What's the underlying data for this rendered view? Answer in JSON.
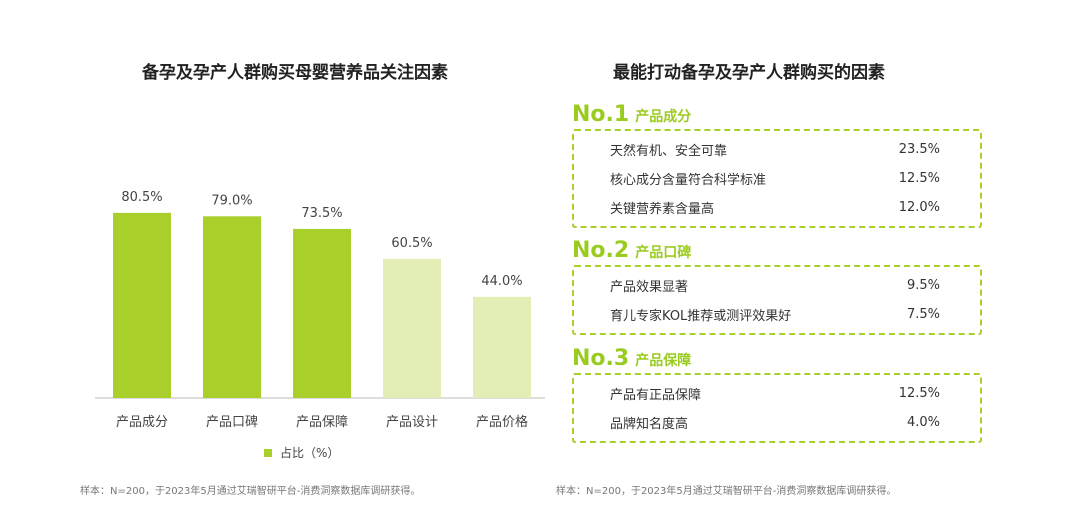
{
  "left": {
    "title": "备孕及孕产人群购买母婴营养品关注因素",
    "legend": "占比（%）",
    "note": "样本：N=200，于2023年5月通过艾瑞智研平台-消费洞察数据库调研获得。"
  },
  "right": {
    "title": "最能打动备孕及孕产人群购买的因素",
    "note": "样本：N=200，于2023年5月通过艾瑞智研平台-消费洞察数据库调研获得。",
    "groups": [
      {
        "no": "No.1",
        "name": "产品成分",
        "items": [
          {
            "label": "天然有机、安全可靠",
            "value": "23.5%"
          },
          {
            "label": "核心成分含量符合科学标准",
            "value": "12.5%"
          },
          {
            "label": "关键营养素含量高",
            "value": "12.0%"
          }
        ]
      },
      {
        "no": "No.2",
        "name": "产品口碑",
        "items": [
          {
            "label": "产品效果显著",
            "value": "9.5%"
          },
          {
            "label": "育儿专家KOL推荐或测评效果好",
            "value": "7.5%"
          }
        ]
      },
      {
        "no": "No.3",
        "name": "产品保障",
        "items": [
          {
            "label": "产品有正品保障",
            "value": "12.5%"
          },
          {
            "label": "品牌知名度高",
            "value": "4.0%"
          }
        ]
      }
    ]
  },
  "chart_data": {
    "type": "bar",
    "title": "备孕及孕产人群购买母婴营养品关注因素",
    "categories": [
      "产品成分",
      "产品口碑",
      "产品保障",
      "产品设计",
      "产品价格"
    ],
    "series": [
      {
        "name": "占比（%）",
        "values": [
          80.5,
          79.0,
          73.5,
          60.5,
          44.0
        ]
      }
    ],
    "value_labels": [
      "80.5%",
      "79.0%",
      "73.5%",
      "60.5%",
      "44.0%"
    ],
    "colors": [
      "#a8cf2a",
      "#a8cf2a",
      "#a8cf2a",
      "#e2eeb6",
      "#e2eeb6"
    ],
    "ylim": [
      0,
      100
    ],
    "grid": false,
    "legend": "bottom"
  }
}
